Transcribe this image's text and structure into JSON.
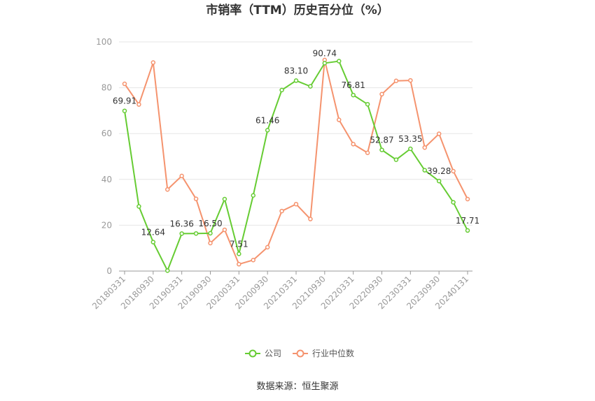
{
  "chart_data": {
    "type": "line",
    "title": "市销率（TTM）历史百分位（%）",
    "ylim": [
      0,
      100
    ],
    "yticks": [
      0,
      20,
      40,
      60,
      80,
      100
    ],
    "x": [
      "20180331",
      "20180630",
      "20180930",
      "20181231",
      "20190331",
      "20190630",
      "20190930",
      "20191231",
      "20200331",
      "20200630",
      "20200930",
      "20201231",
      "20210331",
      "20210630",
      "20210930",
      "20211231",
      "20220331",
      "20220630",
      "20220930",
      "20221231",
      "20230331",
      "20230630",
      "20230930",
      "20231231",
      "20240131"
    ],
    "xtick_labels": [
      "20180331",
      "20180930",
      "20190331",
      "20190930",
      "20200331",
      "20200930",
      "20210331",
      "20210930",
      "20220331",
      "20220930",
      "20230331",
      "20230930",
      "20240131"
    ],
    "series": [
      {
        "name": "公司",
        "color": "#66cc33",
        "values": [
          69.91,
          28.2,
          12.64,
          0.2,
          16.36,
          16.4,
          16.5,
          31.4,
          7.51,
          33.0,
          61.46,
          79.0,
          83.1,
          80.6,
          90.74,
          91.6,
          76.81,
          72.8,
          52.87,
          48.6,
          53.35,
          44.0,
          39.28,
          30.0,
          17.71
        ]
      },
      {
        "name": "行业中位数",
        "color": "#f5936e",
        "values": [
          81.7,
          72.7,
          91.0,
          35.6,
          41.5,
          31.5,
          12.2,
          18.0,
          3.0,
          4.8,
          10.4,
          26.2,
          29.2,
          22.7,
          92.1,
          66.0,
          55.4,
          51.6,
          77.2,
          83.0,
          83.2,
          53.9,
          59.9,
          43.6,
          31.4
        ]
      }
    ],
    "data_labels": [
      {
        "index": 0,
        "text": "69.91"
      },
      {
        "index": 2,
        "text": "12.64"
      },
      {
        "index": 4,
        "text": "16.36"
      },
      {
        "index": 6,
        "text": "16.50"
      },
      {
        "index": 8,
        "text": "7.51"
      },
      {
        "index": 10,
        "text": "61.46"
      },
      {
        "index": 12,
        "text": "83.10"
      },
      {
        "index": 14,
        "text": "90.74"
      },
      {
        "index": 16,
        "text": "76.81"
      },
      {
        "index": 18,
        "text": "52.87"
      },
      {
        "index": 20,
        "text": "53.35"
      },
      {
        "index": 22,
        "text": "39.28"
      },
      {
        "index": 24,
        "text": "17.71"
      }
    ],
    "legend": [
      "公司",
      "行业中位数"
    ],
    "legend_position": "bottom",
    "grid": true
  },
  "source_label": "数据来源：恒生聚源"
}
